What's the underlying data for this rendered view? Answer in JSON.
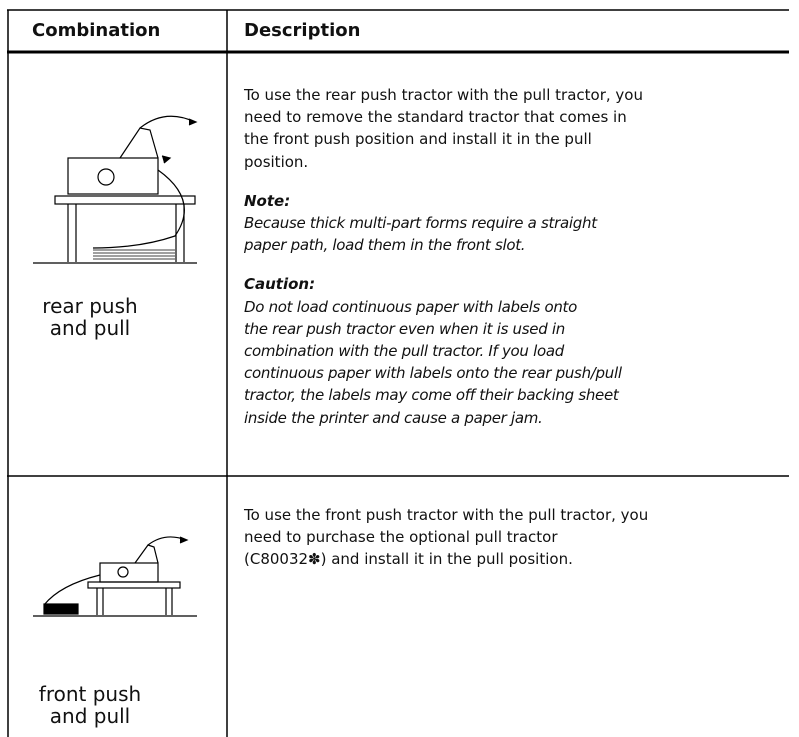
{
  "table": {
    "headers": [
      "Combination",
      "Description"
    ],
    "rows": [
      {
        "combination": [
          "rear push",
          "and pull"
        ],
        "description": {
          "paragraph": [
            "To use the rear push tractor with the pull tractor, you",
            "need to remove the standard tractor that comes in",
            "the front push position and install it in the pull",
            "position."
          ],
          "note": {
            "label": "Note:",
            "lines": [
              "Because thick multi-part forms require a straight",
              "paper path, load them in the front slot."
            ]
          },
          "caution": {
            "label": "Caution:",
            "lines": [
              "Do not load continuous paper with labels onto",
              "the rear push tractor even when it is used in",
              "combination with the pull tractor. If you load",
              "continuous paper with labels onto the rear push/pull",
              "tractor, the labels may come off their backing sheet",
              "inside the printer and cause a paper jam."
            ]
          }
        }
      },
      {
        "combination": [
          "front push",
          "and pull"
        ],
        "description": {
          "paragraph": [
            "To use the front push tractor with the pull tractor, you",
            "need to purchase the optional pull tractor",
            "(C80032✽) and install it in the pull position."
          ]
        }
      }
    ]
  }
}
